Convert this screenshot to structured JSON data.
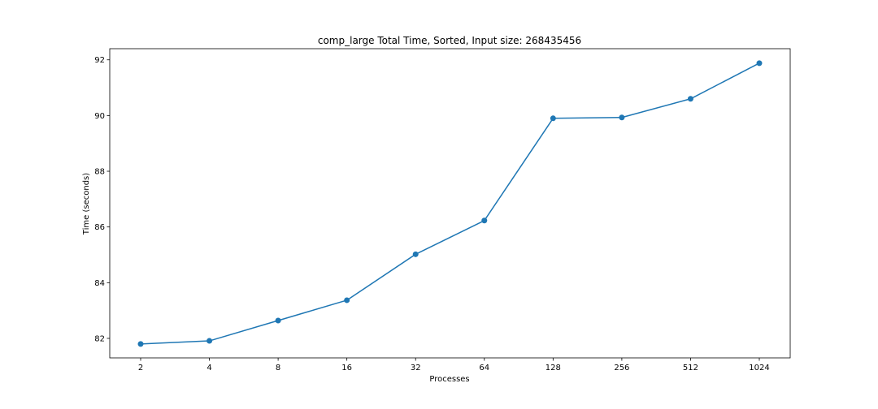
{
  "chart_data": {
    "type": "line",
    "title": "comp_large Total Time, Sorted, Input size: 268435456",
    "xlabel": "Processes",
    "ylabel": "Time (seconds)",
    "categories": [
      "2",
      "4",
      "8",
      "16",
      "32",
      "64",
      "128",
      "256",
      "512",
      "1024"
    ],
    "series": [
      {
        "values": [
          81.8,
          81.91,
          82.64,
          83.37,
          85.02,
          86.23,
          89.9,
          89.93,
          90.6,
          91.88
        ],
        "color": "#1f77b4",
        "marker": "circle"
      }
    ],
    "yticks": [
      82,
      84,
      86,
      88,
      90,
      92
    ],
    "ylim": [
      81.3,
      92.4
    ],
    "grid": false,
    "legend": "none"
  }
}
